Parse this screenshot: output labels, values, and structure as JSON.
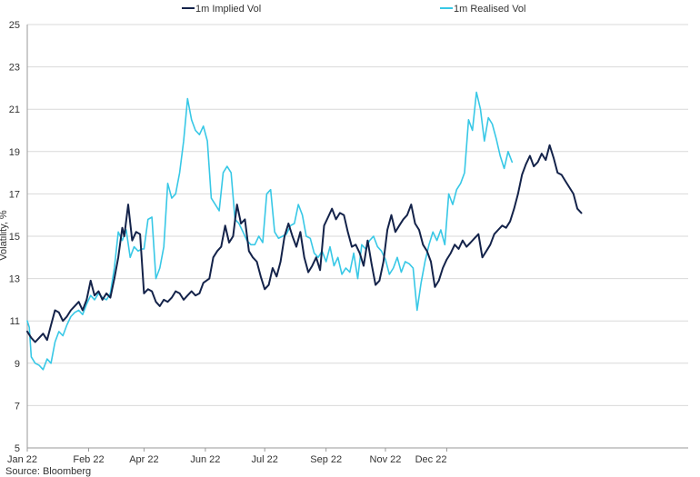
{
  "chart_data": {
    "type": "line",
    "title": "",
    "xlabel": "",
    "ylabel": "Volatility, %",
    "source": "Source: Bloomberg",
    "xlim": [
      "2022-01-01",
      "2022-12-01"
    ],
    "ylim": [
      5,
      25
    ],
    "yticks": [
      5,
      7,
      9,
      11,
      13,
      15,
      17,
      19,
      21,
      23,
      25
    ],
    "xticks": [
      {
        "date": "2022-01-01",
        "label": "Jan 22"
      },
      {
        "date": "2022-02-01",
        "label": "Feb 22"
      },
      {
        "date": "2022-03-01",
        "label": "Apr 22"
      },
      {
        "date": "2022-04-01",
        "label": "Jun 22"
      },
      {
        "date": "2022-05-01",
        "label": "Jul 22"
      },
      {
        "date": "2022-06-01",
        "label": "Sep 22"
      },
      {
        "date": "2022-07-01",
        "label": "Nov 22"
      },
      {
        "date": "2022-08-01",
        "label": "Dec 22"
      }
    ],
    "grid": "horizontal",
    "legend_position": "top",
    "series": [
      {
        "name": "1m Implied Vol",
        "color": "#14234a",
        "points": [
          [
            "2022-01-01",
            10.5
          ],
          [
            "2022-01-03",
            10.2
          ],
          [
            "2022-01-05",
            10.0
          ],
          [
            "2022-01-07",
            10.2
          ],
          [
            "2022-01-09",
            10.4
          ],
          [
            "2022-01-11",
            10.1
          ],
          [
            "2022-01-13",
            10.8
          ],
          [
            "2022-01-15",
            11.5
          ],
          [
            "2022-01-17",
            11.4
          ],
          [
            "2022-01-19",
            11.0
          ],
          [
            "2022-01-21",
            11.2
          ],
          [
            "2022-01-23",
            11.5
          ],
          [
            "2022-01-25",
            11.7
          ],
          [
            "2022-01-27",
            11.9
          ],
          [
            "2022-01-29",
            11.5
          ],
          [
            "2022-01-31",
            12.0
          ],
          [
            "2022-02-02",
            12.9
          ],
          [
            "2022-02-04",
            12.2
          ],
          [
            "2022-02-06",
            12.4
          ],
          [
            "2022-02-08",
            12.0
          ],
          [
            "2022-02-10",
            12.3
          ],
          [
            "2022-02-12",
            12.1
          ],
          [
            "2022-02-14",
            13.0
          ],
          [
            "2022-02-16",
            14.0
          ],
          [
            "2022-02-18",
            15.4
          ],
          [
            "2022-02-19",
            15.0
          ],
          [
            "2022-02-21",
            16.5
          ],
          [
            "2022-02-23",
            14.8
          ],
          [
            "2022-02-25",
            15.2
          ],
          [
            "2022-02-27",
            15.1
          ],
          [
            "2022-03-01",
            12.3
          ],
          [
            "2022-03-03",
            12.5
          ],
          [
            "2022-03-05",
            12.4
          ],
          [
            "2022-03-07",
            11.9
          ],
          [
            "2022-03-09",
            11.7
          ],
          [
            "2022-03-11",
            12.0
          ],
          [
            "2022-03-13",
            11.9
          ],
          [
            "2022-03-15",
            12.1
          ],
          [
            "2022-03-17",
            12.4
          ],
          [
            "2022-03-19",
            12.3
          ],
          [
            "2022-03-21",
            12.0
          ],
          [
            "2022-03-23",
            12.2
          ],
          [
            "2022-03-25",
            12.4
          ],
          [
            "2022-03-27",
            12.2
          ],
          [
            "2022-03-29",
            12.3
          ],
          [
            "2022-03-31",
            12.8
          ],
          [
            "2022-04-03",
            13.0
          ],
          [
            "2022-04-05",
            14.0
          ],
          [
            "2022-04-07",
            14.3
          ],
          [
            "2022-04-09",
            14.5
          ],
          [
            "2022-04-11",
            15.5
          ],
          [
            "2022-04-13",
            14.7
          ],
          [
            "2022-04-15",
            15.0
          ],
          [
            "2022-04-17",
            16.5
          ],
          [
            "2022-04-19",
            15.6
          ],
          [
            "2022-04-21",
            15.8
          ],
          [
            "2022-04-23",
            14.3
          ],
          [
            "2022-04-25",
            14.0
          ],
          [
            "2022-04-27",
            13.8
          ],
          [
            "2022-04-29",
            13.1
          ],
          [
            "2022-05-01",
            12.5
          ],
          [
            "2022-05-03",
            12.7
          ],
          [
            "2022-05-05",
            13.5
          ],
          [
            "2022-05-07",
            13.1
          ],
          [
            "2022-05-09",
            13.8
          ],
          [
            "2022-05-11",
            15.0
          ],
          [
            "2022-05-13",
            15.6
          ],
          [
            "2022-05-15",
            15.0
          ],
          [
            "2022-05-17",
            14.5
          ],
          [
            "2022-05-19",
            15.2
          ],
          [
            "2022-05-21",
            14.0
          ],
          [
            "2022-05-23",
            13.3
          ],
          [
            "2022-05-25",
            13.6
          ],
          [
            "2022-05-27",
            14.0
          ],
          [
            "2022-05-29",
            13.4
          ],
          [
            "2022-05-31",
            15.5
          ],
          [
            "2022-06-02",
            15.9
          ],
          [
            "2022-06-04",
            16.3
          ],
          [
            "2022-06-06",
            15.8
          ],
          [
            "2022-06-08",
            16.1
          ],
          [
            "2022-06-10",
            16.0
          ],
          [
            "2022-06-12",
            15.2
          ],
          [
            "2022-06-14",
            14.5
          ],
          [
            "2022-06-16",
            14.6
          ],
          [
            "2022-06-18",
            14.2
          ],
          [
            "2022-06-20",
            13.6
          ],
          [
            "2022-06-22",
            14.8
          ],
          [
            "2022-06-24",
            13.7
          ],
          [
            "2022-06-26",
            12.7
          ],
          [
            "2022-06-28",
            12.9
          ],
          [
            "2022-06-30",
            13.8
          ],
          [
            "2022-07-02",
            15.3
          ],
          [
            "2022-07-04",
            16.0
          ],
          [
            "2022-07-06",
            15.2
          ],
          [
            "2022-07-08",
            15.5
          ],
          [
            "2022-07-10",
            15.8
          ],
          [
            "2022-07-12",
            16.0
          ],
          [
            "2022-07-14",
            16.5
          ],
          [
            "2022-07-16",
            15.6
          ],
          [
            "2022-07-18",
            15.3
          ],
          [
            "2022-07-20",
            14.6
          ],
          [
            "2022-07-22",
            14.3
          ],
          [
            "2022-07-24",
            13.8
          ],
          [
            "2022-07-26",
            12.6
          ],
          [
            "2022-07-28",
            12.9
          ],
          [
            "2022-07-30",
            13.5
          ],
          [
            "2022-08-01",
            13.9
          ],
          [
            "2022-08-03",
            14.2
          ],
          [
            "2022-08-05",
            14.6
          ],
          [
            "2022-08-07",
            14.4
          ],
          [
            "2022-08-09",
            14.8
          ],
          [
            "2022-08-11",
            14.5
          ],
          [
            "2022-08-13",
            14.7
          ],
          [
            "2022-08-15",
            14.9
          ],
          [
            "2022-08-17",
            15.1
          ],
          [
            "2022-08-19",
            14.0
          ],
          [
            "2022-08-21",
            14.3
          ],
          [
            "2022-08-23",
            14.6
          ],
          [
            "2022-08-25",
            15.1
          ],
          [
            "2022-08-27",
            15.3
          ],
          [
            "2022-08-29",
            15.5
          ],
          [
            "2022-08-31",
            15.4
          ],
          [
            "2022-09-02",
            15.7
          ],
          [
            "2022-09-04",
            16.3
          ],
          [
            "2022-09-06",
            17.0
          ],
          [
            "2022-09-08",
            17.9
          ],
          [
            "2022-09-10",
            18.4
          ],
          [
            "2022-09-12",
            18.8
          ],
          [
            "2022-09-14",
            18.3
          ],
          [
            "2022-09-16",
            18.5
          ],
          [
            "2022-09-18",
            18.9
          ],
          [
            "2022-09-20",
            18.6
          ],
          [
            "2022-09-22",
            19.3
          ],
          [
            "2022-09-24",
            18.7
          ],
          [
            "2022-09-26",
            18.0
          ],
          [
            "2022-09-28",
            17.9
          ],
          [
            "2022-09-30",
            17.6
          ],
          [
            "2022-10-02",
            17.3
          ],
          [
            "2022-10-04",
            17.0
          ],
          [
            "2022-10-06",
            16.3
          ],
          [
            "2022-10-08",
            16.1
          ]
        ]
      },
      {
        "name": "1m Realised Vol",
        "color": "#38c8e6",
        "points": [
          [
            "2022-01-01",
            11.0
          ],
          [
            "2022-01-02",
            10.7
          ],
          [
            "2022-01-03",
            9.3
          ],
          [
            "2022-01-05",
            9.0
          ],
          [
            "2022-01-07",
            8.9
          ],
          [
            "2022-01-09",
            8.7
          ],
          [
            "2022-01-11",
            9.2
          ],
          [
            "2022-01-13",
            9.0
          ],
          [
            "2022-01-15",
            10.0
          ],
          [
            "2022-01-17",
            10.5
          ],
          [
            "2022-01-19",
            10.3
          ],
          [
            "2022-01-21",
            10.8
          ],
          [
            "2022-01-23",
            11.2
          ],
          [
            "2022-01-25",
            11.4
          ],
          [
            "2022-01-27",
            11.5
          ],
          [
            "2022-01-29",
            11.3
          ],
          [
            "2022-01-31",
            11.8
          ],
          [
            "2022-02-02",
            12.2
          ],
          [
            "2022-02-04",
            12.0
          ],
          [
            "2022-02-06",
            12.3
          ],
          [
            "2022-02-08",
            12.1
          ],
          [
            "2022-02-10",
            12.0
          ],
          [
            "2022-02-12",
            12.3
          ],
          [
            "2022-02-14",
            13.5
          ],
          [
            "2022-02-16",
            15.2
          ],
          [
            "2022-02-18",
            14.8
          ],
          [
            "2022-02-20",
            15.3
          ],
          [
            "2022-02-22",
            14.0
          ],
          [
            "2022-02-24",
            14.5
          ],
          [
            "2022-02-26",
            14.3
          ],
          [
            "2022-02-28",
            14.4
          ],
          [
            "2022-03-01",
            14.4
          ],
          [
            "2022-03-03",
            15.8
          ],
          [
            "2022-03-05",
            15.9
          ],
          [
            "2022-03-07",
            13.0
          ],
          [
            "2022-03-09",
            13.5
          ],
          [
            "2022-03-11",
            14.5
          ],
          [
            "2022-03-13",
            17.5
          ],
          [
            "2022-03-15",
            16.8
          ],
          [
            "2022-03-17",
            17.0
          ],
          [
            "2022-03-19",
            18.0
          ],
          [
            "2022-03-21",
            19.5
          ],
          [
            "2022-03-23",
            21.5
          ],
          [
            "2022-03-25",
            20.5
          ],
          [
            "2022-03-27",
            20.0
          ],
          [
            "2022-03-29",
            19.8
          ],
          [
            "2022-03-31",
            20.2
          ],
          [
            "2022-04-02",
            19.5
          ],
          [
            "2022-04-04",
            16.8
          ],
          [
            "2022-04-06",
            16.5
          ],
          [
            "2022-04-08",
            16.2
          ],
          [
            "2022-04-10",
            18.0
          ],
          [
            "2022-04-12",
            18.3
          ],
          [
            "2022-04-14",
            18.0
          ],
          [
            "2022-04-16",
            15.8
          ],
          [
            "2022-04-18",
            15.6
          ],
          [
            "2022-04-20",
            15.2
          ],
          [
            "2022-04-22",
            14.8
          ],
          [
            "2022-04-24",
            14.6
          ],
          [
            "2022-04-26",
            14.6
          ],
          [
            "2022-04-28",
            15.0
          ],
          [
            "2022-04-30",
            14.7
          ],
          [
            "2022-05-02",
            17.0
          ],
          [
            "2022-05-04",
            17.2
          ],
          [
            "2022-05-06",
            15.2
          ],
          [
            "2022-05-08",
            14.9
          ],
          [
            "2022-05-10",
            15.0
          ],
          [
            "2022-05-12",
            15.1
          ],
          [
            "2022-05-14",
            15.5
          ],
          [
            "2022-05-16",
            15.6
          ],
          [
            "2022-05-18",
            16.5
          ],
          [
            "2022-05-20",
            16.0
          ],
          [
            "2022-05-22",
            15.0
          ],
          [
            "2022-05-24",
            14.9
          ],
          [
            "2022-05-26",
            14.2
          ],
          [
            "2022-05-28",
            14.0
          ],
          [
            "2022-05-30",
            14.3
          ],
          [
            "2022-06-01",
            13.8
          ],
          [
            "2022-06-03",
            14.5
          ],
          [
            "2022-06-05",
            13.6
          ],
          [
            "2022-06-07",
            14.0
          ],
          [
            "2022-06-09",
            13.2
          ],
          [
            "2022-06-11",
            13.5
          ],
          [
            "2022-06-13",
            13.3
          ],
          [
            "2022-06-15",
            14.2
          ],
          [
            "2022-06-17",
            13.0
          ],
          [
            "2022-06-19",
            14.6
          ],
          [
            "2022-06-21",
            14.4
          ],
          [
            "2022-06-23",
            14.8
          ],
          [
            "2022-06-25",
            15.0
          ],
          [
            "2022-06-27",
            14.5
          ],
          [
            "2022-06-29",
            14.3
          ],
          [
            "2022-07-01",
            13.9
          ],
          [
            "2022-07-03",
            13.2
          ],
          [
            "2022-07-05",
            13.5
          ],
          [
            "2022-07-07",
            14.0
          ],
          [
            "2022-07-09",
            13.3
          ],
          [
            "2022-07-11",
            13.8
          ],
          [
            "2022-07-13",
            13.7
          ],
          [
            "2022-07-15",
            13.5
          ],
          [
            "2022-07-17",
            11.5
          ],
          [
            "2022-07-19",
            12.8
          ],
          [
            "2022-07-21",
            13.8
          ],
          [
            "2022-07-23",
            14.6
          ],
          [
            "2022-07-25",
            15.2
          ],
          [
            "2022-07-27",
            14.8
          ],
          [
            "2022-07-29",
            15.3
          ],
          [
            "2022-07-31",
            14.6
          ],
          [
            "2022-08-02",
            17.0
          ],
          [
            "2022-08-04",
            16.5
          ],
          [
            "2022-08-06",
            17.2
          ],
          [
            "2022-08-08",
            17.5
          ],
          [
            "2022-08-10",
            18.0
          ],
          [
            "2022-08-12",
            20.5
          ],
          [
            "2022-08-14",
            20.0
          ],
          [
            "2022-08-16",
            21.8
          ],
          [
            "2022-08-18",
            21.0
          ],
          [
            "2022-08-20",
            19.5
          ],
          [
            "2022-08-22",
            20.6
          ],
          [
            "2022-08-24",
            20.3
          ],
          [
            "2022-08-26",
            19.6
          ],
          [
            "2022-08-28",
            18.8
          ],
          [
            "2022-08-30",
            18.2
          ],
          [
            "2022-09-01",
            19.0
          ],
          [
            "2022-09-03",
            18.5
          ]
        ]
      }
    ]
  }
}
